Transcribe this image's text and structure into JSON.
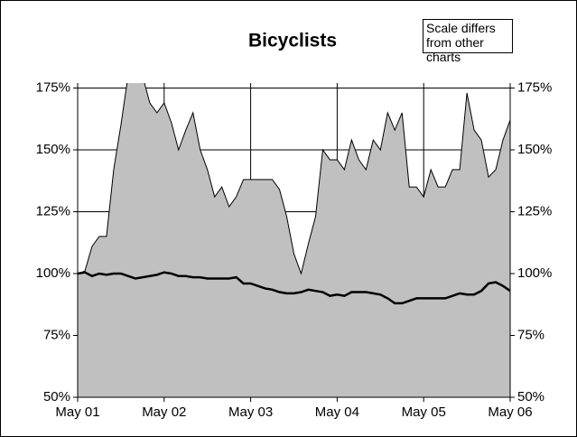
{
  "chart_data": {
    "type": "area_line",
    "title": "Bicyclists",
    "annotation": "Scale differs from other charts",
    "categories": [
      "May 01",
      null,
      null,
      null,
      null,
      null,
      null,
      null,
      null,
      null,
      null,
      null,
      "May 02",
      null,
      null,
      null,
      null,
      null,
      null,
      null,
      null,
      null,
      null,
      null,
      "May 03",
      null,
      null,
      null,
      null,
      null,
      null,
      null,
      null,
      null,
      null,
      null,
      "May 04",
      null,
      null,
      null,
      null,
      null,
      null,
      null,
      null,
      null,
      null,
      null,
      "May 05",
      null,
      null,
      null,
      null,
      null,
      null,
      null,
      null,
      null,
      null,
      null,
      "May 06"
    ],
    "series": [
      {
        "color": "#c0c0c0",
        "values": [
          100,
          101,
          111,
          115,
          115,
          142,
          160,
          180,
          180,
          180,
          169,
          165,
          169,
          161,
          150,
          158,
          165,
          150,
          142,
          131,
          135,
          127,
          131,
          138,
          138,
          138,
          138,
          138,
          134,
          123,
          108,
          100,
          112,
          123,
          150,
          146,
          146,
          142,
          154,
          146,
          142,
          154,
          150,
          165,
          158,
          165,
          135,
          135,
          131,
          142,
          135,
          135,
          142,
          142,
          173,
          158,
          154,
          139,
          142,
          154,
          162
        ]
      },
      {
        "color": "#000000",
        "values": [
          100,
          100.5,
          99,
          100,
          99.5,
          100,
          100,
          99,
          98,
          98.5,
          99,
          99.5,
          100.5,
          100,
          99,
          99,
          98.5,
          98.5,
          98,
          98,
          98,
          98,
          98.5,
          96,
          96,
          95,
          94,
          93.5,
          92.5,
          92,
          92,
          92.5,
          93.5,
          93,
          92.5,
          91,
          91.5,
          91,
          92.5,
          92.5,
          92.5,
          92,
          91.5,
          90,
          88,
          88,
          89,
          90,
          90,
          90,
          90,
          90,
          91,
          92,
          91.5,
          91.5,
          93,
          96,
          96.5,
          95,
          93
        ]
      }
    ],
    "ylim": [
      50,
      177
    ],
    "yticks": [
      {
        "value": 50,
        "label": "50%"
      },
      {
        "value": 75,
        "label": "75%"
      },
      {
        "value": 100,
        "label": "100%"
      },
      {
        "value": 125,
        "label": "125%"
      },
      {
        "value": 150,
        "label": "150%"
      },
      {
        "value": 175,
        "label": "175%"
      }
    ],
    "y2lim": [
      50,
      177
    ],
    "y2ticks": [
      {
        "value": 50,
        "label": "50%"
      },
      {
        "value": 75,
        "label": "75%"
      },
      {
        "value": 100,
        "label": "100%"
      },
      {
        "value": 125,
        "label": "125%"
      },
      {
        "value": 150,
        "label": "150%"
      },
      {
        "value": 175,
        "label": "175%"
      }
    ],
    "grid": true
  }
}
